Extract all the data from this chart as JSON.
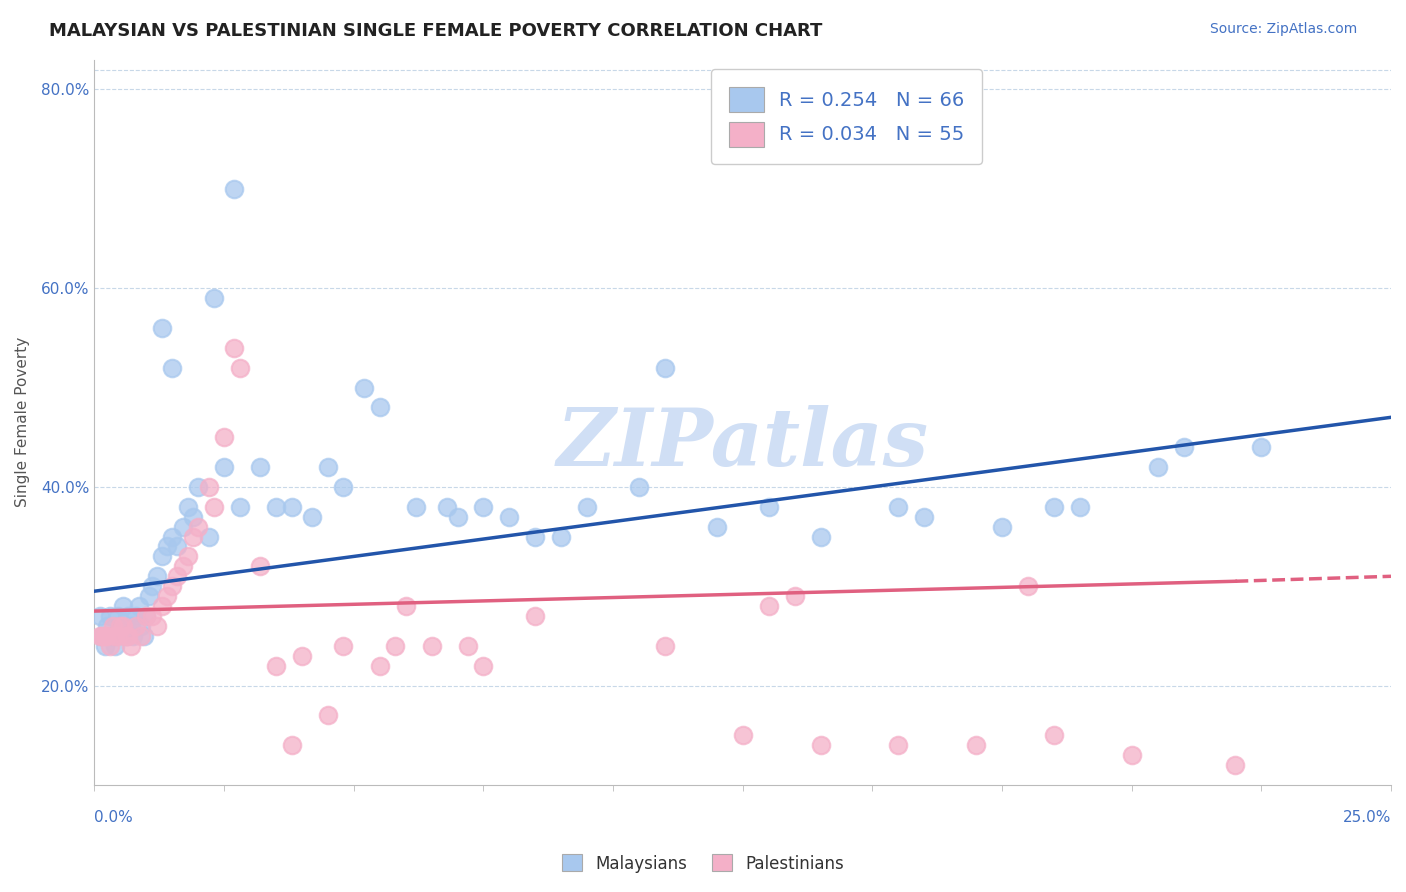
{
  "title": "MALAYSIAN VS PALESTINIAN SINGLE FEMALE POVERTY CORRELATION CHART",
  "source_text": "Source: ZipAtlas.com",
  "ylabel": "Single Female Poverty",
  "xmin": 0.0,
  "xmax": 25.0,
  "ymin": 10.0,
  "ymax": 83.0,
  "yticks": [
    20.0,
    40.0,
    60.0,
    80.0
  ],
  "top_grid_y": 82.0,
  "legend_blue_label": "R = 0.254   N = 66",
  "legend_pink_label": "R = 0.034   N = 55",
  "legend_label_malaysians": "Malaysians",
  "legend_label_palestinians": "Palestinians",
  "blue_color": "#a8c8ee",
  "pink_color": "#f4b0c8",
  "blue_line_color": "#2255aa",
  "pink_line_color": "#e06080",
  "watermark_text": "ZIPatlas",
  "watermark_color": "#d0dff5",
  "blue_trend_x0": 0.0,
  "blue_trend_y0": 29.5,
  "blue_trend_x1": 25.0,
  "blue_trend_y1": 47.0,
  "pink_trend_x0": 0.0,
  "pink_trend_y0": 27.5,
  "pink_trend_x1": 22.0,
  "pink_trend_y1": 30.5,
  "pink_trend_dash_x0": 22.0,
  "pink_trend_dash_y0": 30.5,
  "pink_trend_dash_x1": 25.0,
  "pink_trend_dash_y1": 31.0,
  "blue_scatter_x": [
    0.1,
    0.15,
    0.2,
    0.25,
    0.3,
    0.35,
    0.4,
    0.45,
    0.5,
    0.55,
    0.6,
    0.65,
    0.7,
    0.75,
    0.8,
    0.85,
    0.9,
    0.95,
    1.0,
    1.05,
    1.1,
    1.2,
    1.3,
    1.4,
    1.5,
    1.6,
    1.7,
    1.8,
    1.9,
    2.0,
    2.2,
    2.5,
    2.8,
    3.2,
    3.8,
    4.2,
    4.8,
    5.5,
    6.2,
    7.0,
    8.0,
    9.5,
    10.5,
    12.0,
    14.0,
    16.0,
    17.5,
    19.0,
    21.0,
    22.5,
    5.2,
    6.8,
    8.5,
    11.0,
    13.0,
    15.5,
    7.5,
    9.0,
    18.5,
    20.5,
    3.5,
    4.5,
    2.3,
    2.7,
    1.3,
    1.5
  ],
  "blue_scatter_y": [
    27.0,
    25.0,
    24.0,
    26.0,
    27.0,
    25.0,
    24.0,
    27.0,
    26.0,
    28.0,
    25.0,
    27.0,
    26.0,
    25.0,
    27.0,
    28.0,
    26.0,
    25.0,
    27.0,
    29.0,
    30.0,
    31.0,
    33.0,
    34.0,
    35.0,
    34.0,
    36.0,
    38.0,
    37.0,
    40.0,
    35.0,
    42.0,
    38.0,
    42.0,
    38.0,
    37.0,
    40.0,
    48.0,
    38.0,
    37.0,
    37.0,
    38.0,
    40.0,
    36.0,
    35.0,
    37.0,
    36.0,
    38.0,
    44.0,
    44.0,
    50.0,
    38.0,
    35.0,
    52.0,
    38.0,
    38.0,
    38.0,
    35.0,
    38.0,
    42.0,
    38.0,
    42.0,
    59.0,
    70.0,
    56.0,
    52.0
  ],
  "pink_scatter_x": [
    0.1,
    0.15,
    0.2,
    0.25,
    0.3,
    0.35,
    0.4,
    0.45,
    0.5,
    0.55,
    0.6,
    0.65,
    0.7,
    0.8,
    0.9,
    1.0,
    1.1,
    1.2,
    1.3,
    1.4,
    1.5,
    1.6,
    1.7,
    1.8,
    1.9,
    2.0,
    2.2,
    2.5,
    2.8,
    3.5,
    4.0,
    4.8,
    5.5,
    6.5,
    7.5,
    2.3,
    2.7,
    3.2,
    5.8,
    7.2,
    8.5,
    11.0,
    12.5,
    14.0,
    15.5,
    17.0,
    18.5,
    20.0,
    22.0,
    13.0,
    13.5,
    18.0,
    6.0,
    3.8,
    4.5
  ],
  "pink_scatter_y": [
    25.0,
    25.0,
    25.0,
    25.0,
    24.0,
    26.0,
    25.0,
    25.0,
    26.0,
    26.0,
    25.0,
    25.0,
    24.0,
    26.0,
    25.0,
    27.0,
    27.0,
    26.0,
    28.0,
    29.0,
    30.0,
    31.0,
    32.0,
    33.0,
    35.0,
    36.0,
    40.0,
    45.0,
    52.0,
    22.0,
    23.0,
    24.0,
    22.0,
    24.0,
    22.0,
    38.0,
    54.0,
    32.0,
    24.0,
    24.0,
    27.0,
    24.0,
    15.0,
    14.0,
    14.0,
    14.0,
    15.0,
    13.0,
    12.0,
    28.0,
    29.0,
    30.0,
    28.0,
    14.0,
    17.0
  ]
}
